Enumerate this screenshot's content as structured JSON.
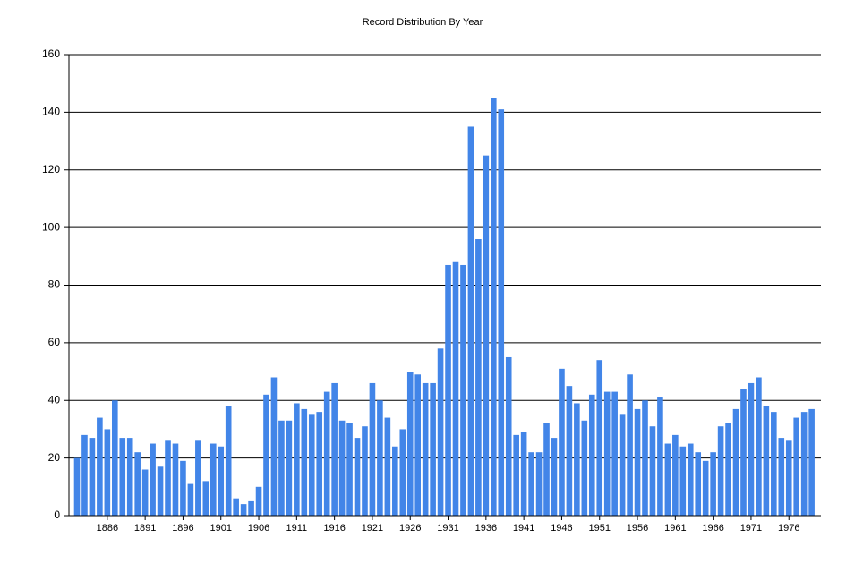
{
  "chart_data": {
    "type": "bar",
    "title": "Record Distribution By Year",
    "categories": [
      null,
      null,
      null,
      null,
      "1886",
      null,
      null,
      null,
      null,
      "1891",
      null,
      null,
      null,
      null,
      "1896",
      null,
      null,
      null,
      null,
      "1901",
      null,
      null,
      null,
      null,
      "1906",
      null,
      null,
      null,
      null,
      "1911",
      null,
      null,
      null,
      null,
      "1916",
      null,
      null,
      null,
      null,
      "1921",
      null,
      null,
      null,
      null,
      "1926",
      null,
      null,
      null,
      null,
      "1931",
      null,
      null,
      null,
      null,
      "1936",
      null,
      null,
      null,
      null,
      "1941",
      null,
      null,
      null,
      null,
      "1946",
      null,
      null,
      null,
      null,
      "1951",
      null,
      null,
      null,
      null,
      "1956",
      null,
      null,
      null,
      null,
      "1961",
      null,
      null,
      null,
      null,
      "1966",
      null,
      null,
      null,
      null,
      "1971",
      null,
      null,
      null,
      null,
      "1976",
      null,
      null,
      null
    ],
    "values": [
      20,
      28,
      27,
      34,
      30,
      40,
      27,
      27,
      22,
      16,
      25,
      17,
      26,
      25,
      19,
      11,
      26,
      12,
      25,
      24,
      38,
      6,
      4,
      5,
      10,
      42,
      48,
      33,
      33,
      39,
      37,
      35,
      36,
      43,
      46,
      33,
      32,
      27,
      31,
      46,
      40,
      34,
      24,
      30,
      50,
      49,
      46,
      46,
      58,
      87,
      88,
      87,
      135,
      96,
      125,
      145,
      141,
      55,
      28,
      29,
      22,
      22,
      32,
      27,
      51,
      45,
      39,
      33,
      42,
      54,
      43,
      43,
      35,
      49,
      37,
      40,
      31,
      41,
      25,
      28,
      24,
      25,
      22,
      19,
      22,
      31,
      32,
      37,
      44,
      46,
      48,
      38,
      36,
      27,
      26,
      34,
      36,
      37
    ],
    "color": "#4285e8",
    "ylim": [
      0,
      160
    ],
    "yticks": [
      0,
      20,
      40,
      60,
      80,
      100,
      120,
      140,
      160
    ],
    "grid": true
  }
}
